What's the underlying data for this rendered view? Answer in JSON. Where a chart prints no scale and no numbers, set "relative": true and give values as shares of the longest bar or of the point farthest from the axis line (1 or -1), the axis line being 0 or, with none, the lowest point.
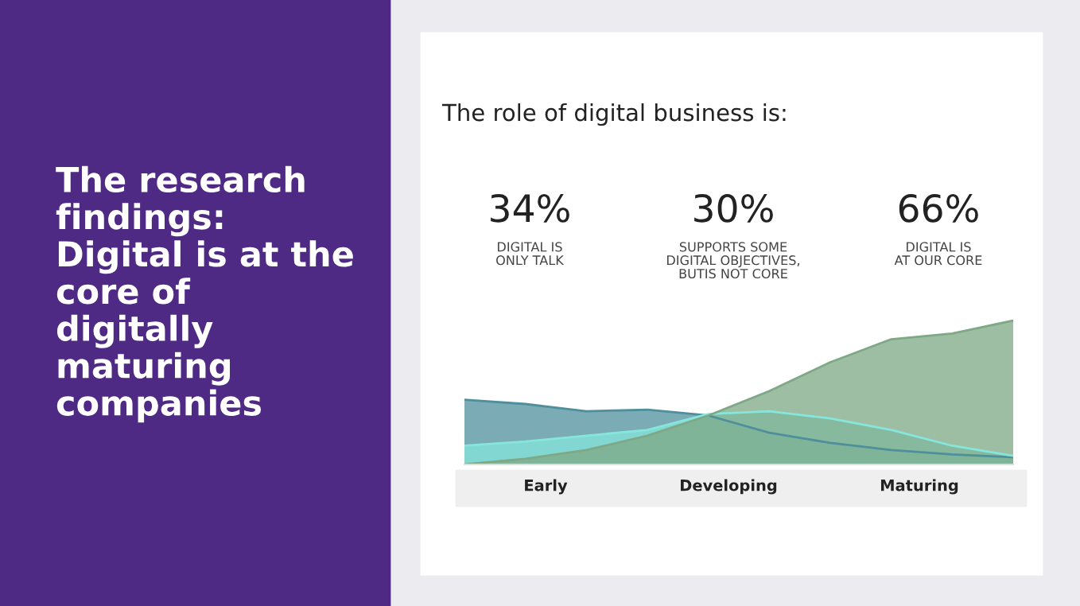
{
  "chart_data": {
    "type": "area",
    "title": "The role of digital business is:",
    "relative": true,
    "categories": [
      null,
      null,
      null,
      null,
      null,
      null,
      null,
      null,
      null,
      null
    ],
    "series": [
      {
        "color": "#4f8f9c",
        "values": [
          0.45,
          0.42,
          0.37,
          0.38,
          0.34,
          0.22,
          0.15,
          0.1,
          0.07,
          0.05
        ]
      },
      {
        "color": "#86e6dc",
        "values": [
          0.13,
          0.16,
          0.2,
          0.24,
          0.35,
          0.37,
          0.32,
          0.24,
          0.13,
          0.06
        ]
      },
      {
        "color": "#7ea886",
        "values": [
          0.0,
          0.04,
          0.1,
          0.2,
          0.34,
          0.51,
          0.71,
          0.87,
          0.91,
          1.0
        ]
      }
    ],
    "annotations": [
      "The research\nfindings:\nDigital is at the\ncore of\ndigitally\nmaturing\ncompanies",
      "34%",
      "30%",
      "66%",
      "DIGITAL IS\nONLY TALK",
      "SUPPORTS SOME\nDIGITAL OBJECTIVES,\nBUTIS NOT CORE",
      "DIGITAL IS\nAT OUR CORE",
      "Early",
      "Developing",
      "Maturing"
    ]
  }
}
